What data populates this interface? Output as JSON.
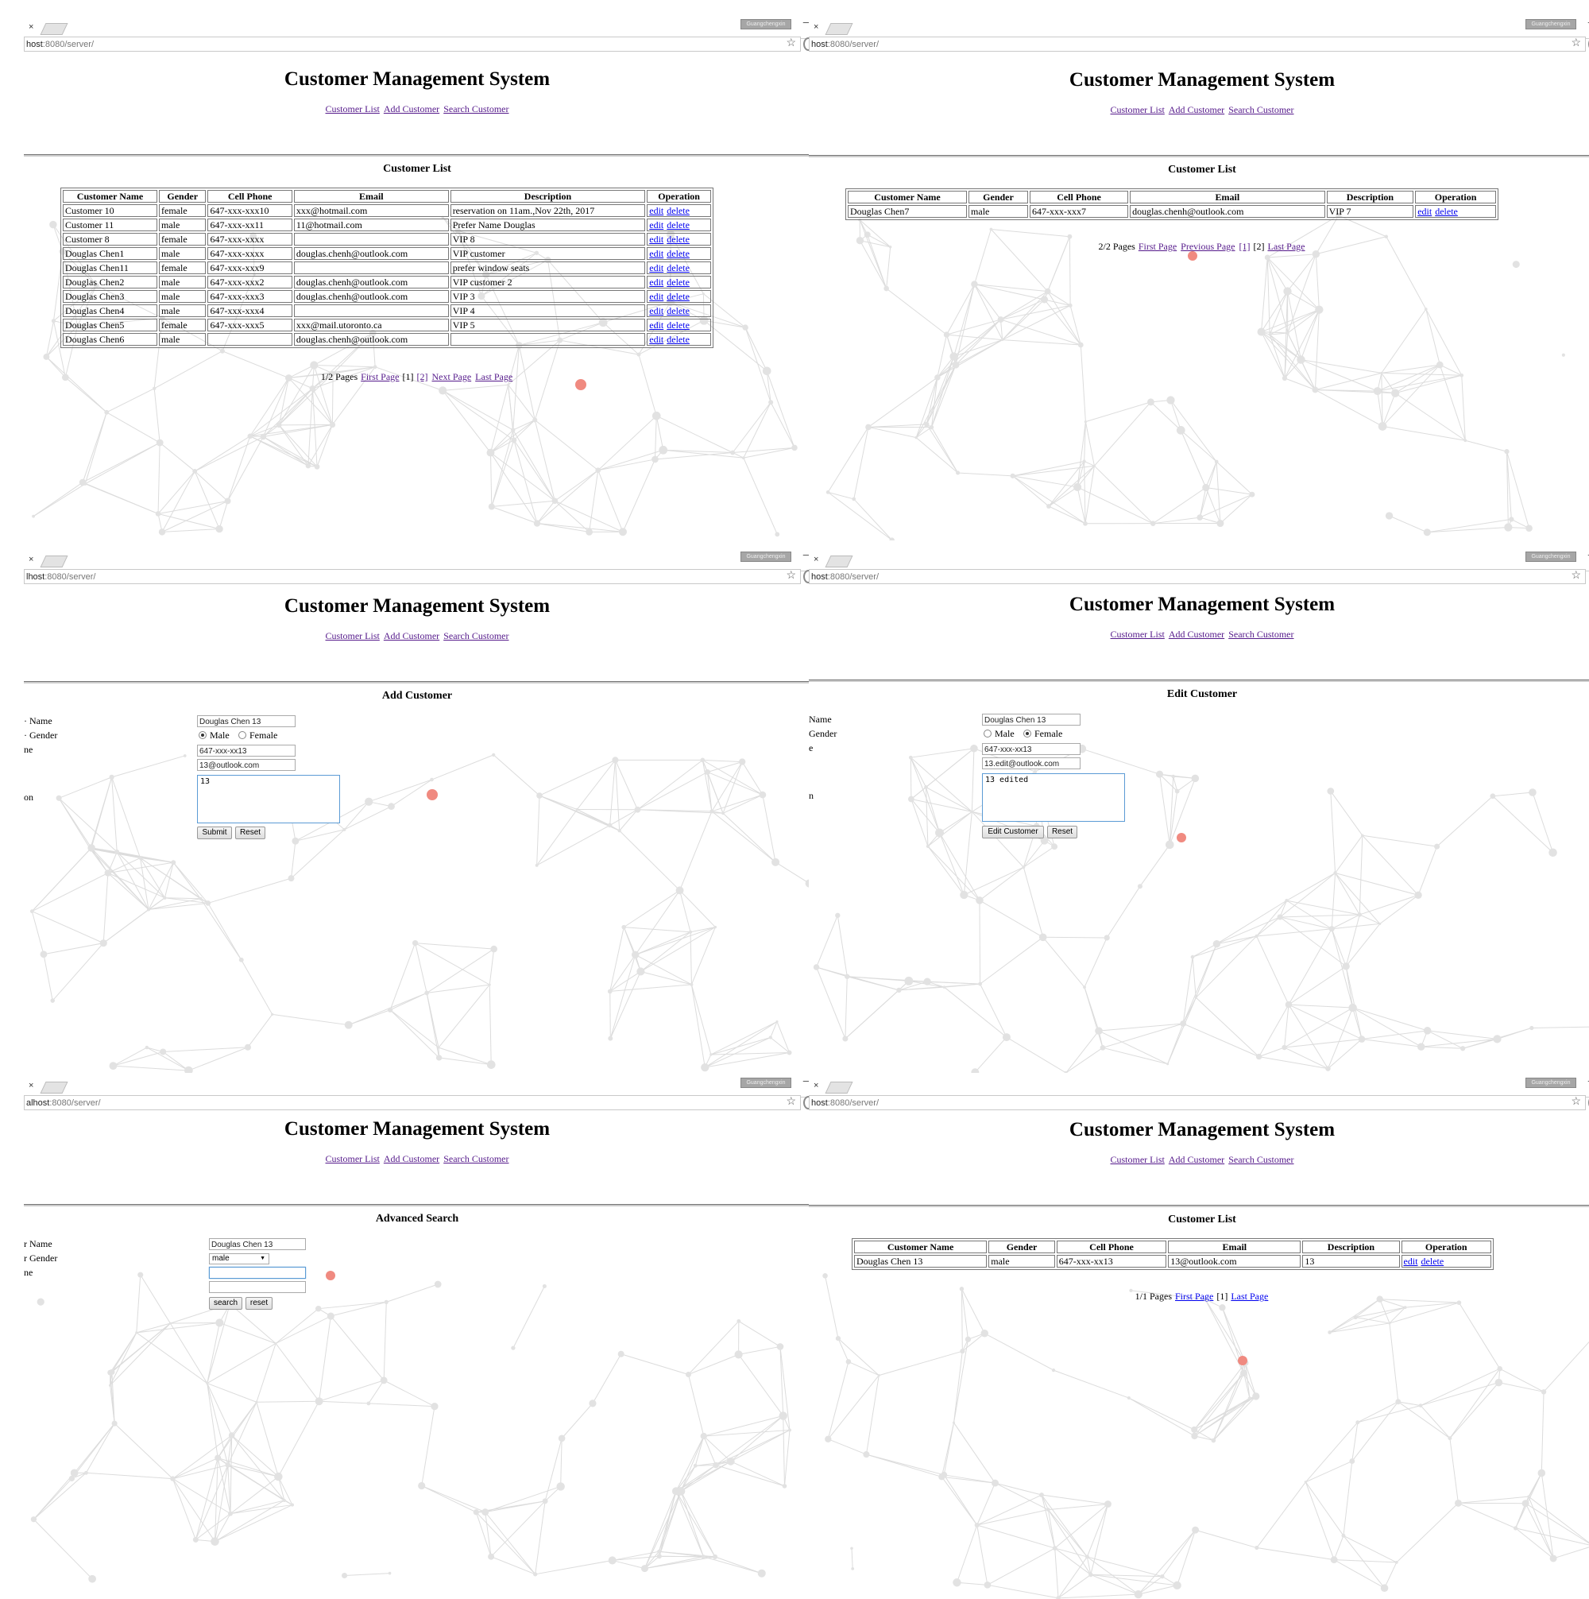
{
  "browser": {
    "tab_close": "×",
    "profile_label": "Guangchengxin",
    "minimize": "–",
    "star": "☆",
    "url_host": "host",
    "url_rest": ":8080/server/",
    "url_host_b": "lhost",
    "url_host_c": "alhost"
  },
  "app": {
    "title": "Customer Management System",
    "nav": [
      "Customer List",
      "Add Customer",
      "Search Customer"
    ]
  },
  "columns": [
    "Customer Name",
    "Gender",
    "Cell Phone",
    "Email",
    "Description",
    "Operation"
  ],
  "ops": {
    "edit": "edit",
    "delete": "delete"
  },
  "panel1": {
    "heading": "Customer List",
    "rows": [
      [
        "Customer 10",
        "female",
        "647-xxx-xxx10",
        "xxx@hotmail.com",
        "reservation on 11am.,Nov 22th, 2017"
      ],
      [
        "Customer 11",
        "male",
        "647-xxx-xx11",
        "11@hotmail.com",
        "Prefer Name Douglas"
      ],
      [
        "Customer 8",
        "female",
        "647-xxx-xxxx",
        "",
        "VIP 8"
      ],
      [
        "Douglas Chen1",
        "male",
        "647-xxx-xxxx",
        "douglas.chenh@outlook.com",
        "VIP customer"
      ],
      [
        "Douglas Chen11",
        "female",
        "647-xxx-xxx9",
        "",
        "prefer window seats"
      ],
      [
        "Douglas Chen2",
        "male",
        "647-xxx-xxx2",
        "douglas.chenh@outlook.com",
        "VIP customer 2"
      ],
      [
        "Douglas Chen3",
        "male",
        "647-xxx-xxx3",
        "douglas.chenh@outlook.com",
        "VIP 3"
      ],
      [
        "Douglas Chen4",
        "male",
        "647-xxx-xxx4",
        "",
        "VIP 4"
      ],
      [
        "Douglas Chen5",
        "female",
        "647-xxx-xxx5",
        "xxx@mail.utoronto.ca",
        "VIP 5"
      ],
      [
        "Douglas Chen6",
        "male",
        "",
        "douglas.chenh@outlook.com",
        ""
      ]
    ],
    "pager": {
      "info": "1/2 Pages",
      "first": "First Page",
      "current": "[1]",
      "page2": "[2]",
      "next": "Next Page",
      "last": "Last Page"
    }
  },
  "panel2": {
    "heading": "Customer List",
    "rows": [
      [
        "Douglas Chen7",
        "male",
        "647-xxx-xxx7",
        "douglas.chenh@outlook.com",
        "VIP 7"
      ]
    ],
    "pager": {
      "info": "2/2 Pages",
      "first": "First Page",
      "prev": "Previous Page",
      "page1": "[1]",
      "current": "[2]",
      "last": "Last Page"
    }
  },
  "panel3": {
    "heading": "Add Customer",
    "labels": [
      "· Name",
      "· Gender",
      "ne",
      "on"
    ],
    "name": "Douglas Chen 13",
    "gender_options": [
      "Male",
      "Female"
    ],
    "gender_selected": "Male",
    "phone": "647-xxx-xx13",
    "email": "13@outlook.com",
    "description": "13",
    "submit": "Submit",
    "reset": "Reset"
  },
  "panel4": {
    "heading": "Edit Customer",
    "labels": [
      "Name",
      "Gender",
      "e",
      "n"
    ],
    "name": "Douglas Chen 13",
    "gender_options": [
      "Male",
      "Female"
    ],
    "gender_selected": "Female",
    "phone": "647-xxx-xx13",
    "email": "13.edit@outlook.com",
    "description": "13 edited",
    "submit": "Edit Customer",
    "reset": "Reset"
  },
  "panel5": {
    "heading": "Advanced Search",
    "labels": [
      "r Name",
      "r Gender",
      "ne"
    ],
    "name": "Douglas Chen 13",
    "gender": "male",
    "search": "search",
    "reset": "reset"
  },
  "panel6": {
    "heading": "Customer List",
    "rows": [
      [
        "Douglas Chen 13",
        "male",
        "647-xxx-xx13",
        "13@outlook.com",
        "13"
      ]
    ],
    "pager": {
      "info": "1/1 Pages",
      "first": "First Page",
      "current": "[1]",
      "last": "Last Page"
    }
  }
}
